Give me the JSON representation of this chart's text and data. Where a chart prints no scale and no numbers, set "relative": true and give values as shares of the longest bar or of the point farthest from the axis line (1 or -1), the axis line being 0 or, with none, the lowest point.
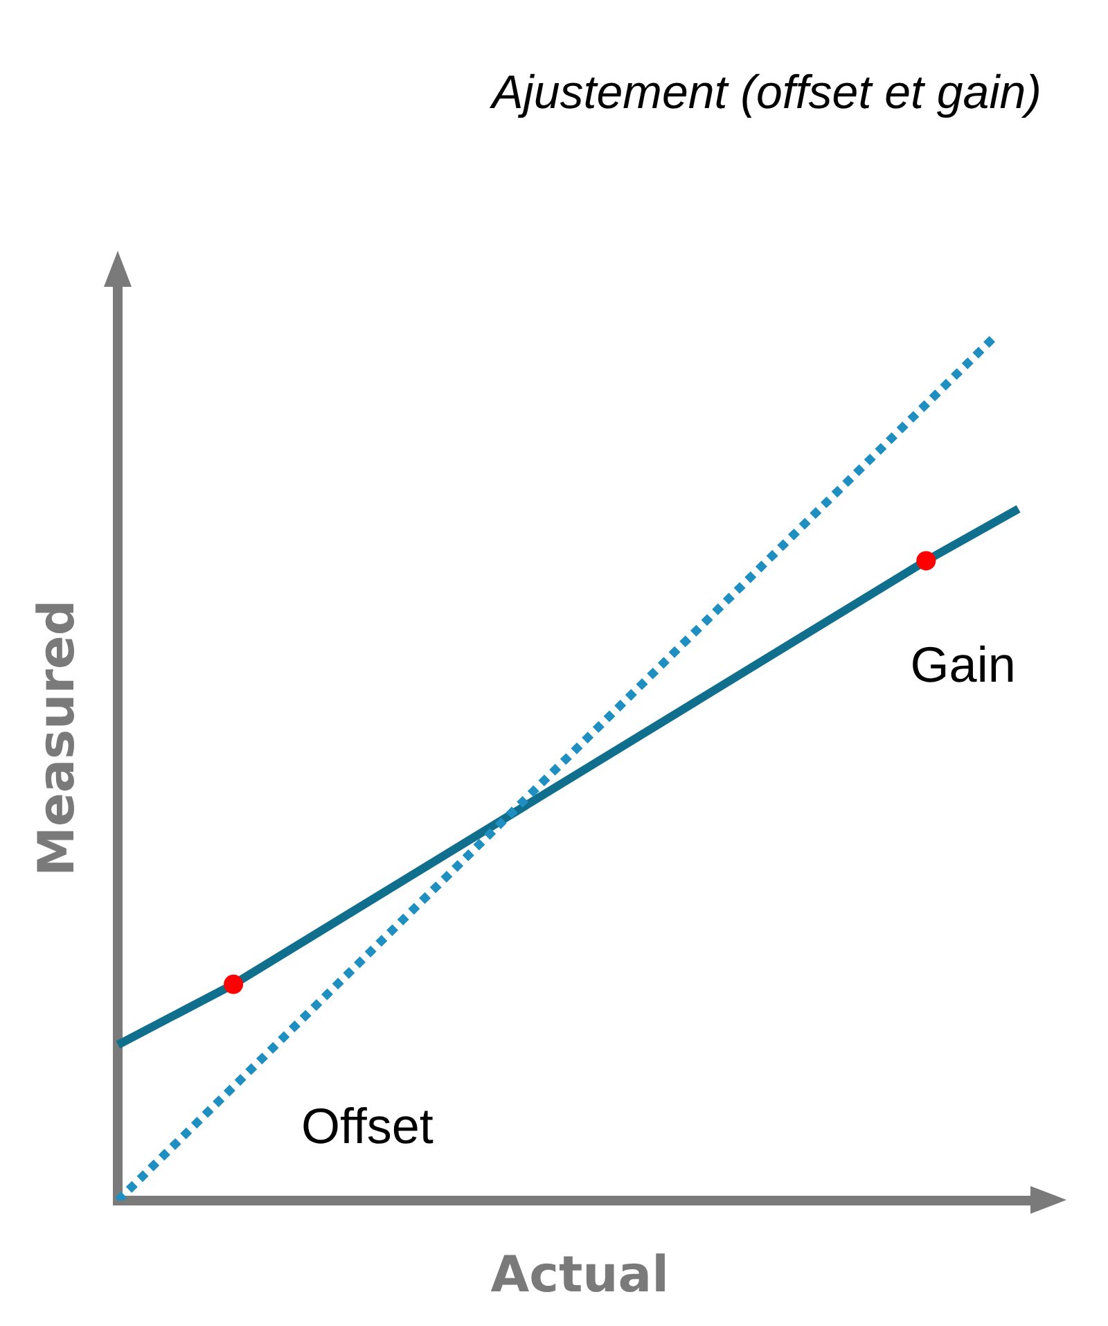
{
  "chart_data": {
    "type": "line",
    "title": "Ajustement (offset et gain)",
    "xlabel": "Actual",
    "ylabel": "Measured",
    "relative": true,
    "grid": false,
    "legend": false,
    "categories": [
      null,
      null,
      null,
      null,
      null,
      null,
      null,
      null,
      null,
      null,
      null,
      null,
      null,
      null,
      null,
      null,
      null,
      null,
      null,
      null,
      null,
      null,
      null,
      null,
      null,
      null,
      null,
      null,
      null,
      null,
      null,
      null,
      null,
      null,
      null,
      null,
      null,
      null,
      null,
      null,
      null
    ],
    "series": [
      {
        "color": "#1e8fc0",
        "line_style": "dotted",
        "marker": "none",
        "values": [
          0,
          null,
          null,
          null,
          null,
          null,
          null,
          null,
          null,
          null,
          null,
          null,
          null,
          null,
          null,
          null,
          null,
          null,
          null,
          null,
          null,
          null,
          null,
          null,
          null,
          null,
          null,
          null,
          null,
          null,
          null,
          null,
          null,
          null,
          null,
          null,
          null,
          null,
          1,
          null,
          null
        ]
      },
      {
        "color": "#0f6f8c",
        "line_style": "solid",
        "marker": "circle",
        "values": [
          0.18,
          null,
          null,
          null,
          null,
          0.25,
          null,
          null,
          null,
          null,
          null,
          null,
          null,
          null,
          null,
          null,
          null,
          null,
          null,
          null,
          null,
          null,
          null,
          null,
          null,
          null,
          null,
          null,
          null,
          null,
          null,
          null,
          null,
          null,
          null,
          0.74,
          null,
          null,
          null,
          0.8,
          null
        ],
        "colors": [
          null,
          null,
          null,
          null,
          null,
          "#ff0000",
          null,
          null,
          null,
          null,
          null,
          null,
          null,
          null,
          null,
          null,
          null,
          null,
          null,
          null,
          null,
          null,
          null,
          null,
          null,
          null,
          null,
          null,
          null,
          null,
          null,
          null,
          null,
          null,
          null,
          "#ff0000",
          null,
          null,
          null,
          null,
          null
        ]
      }
    ],
    "annotations": [
      "Offset",
      "Gain"
    ]
  }
}
